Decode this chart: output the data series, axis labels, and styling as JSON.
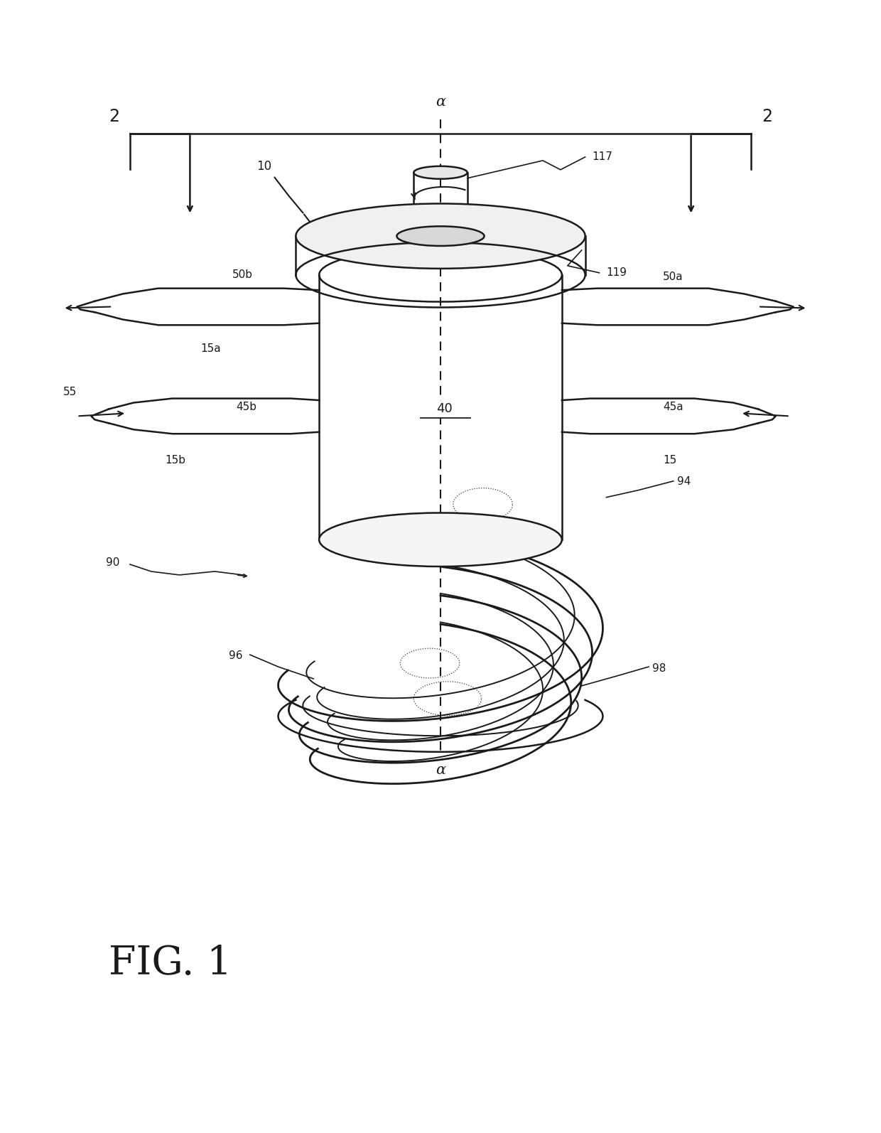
{
  "background_color": "#ffffff",
  "line_color": "#1a1a1a",
  "fig_width": 12.4,
  "fig_height": 15.94,
  "dpi": 100,
  "labels": {
    "2_left": "2",
    "2_right": "2",
    "10": "10",
    "117": "117",
    "119": "119",
    "50b": "50b",
    "50a": "50a",
    "15a": "15a",
    "15b": "15b",
    "15": "15",
    "45a": "45a",
    "45b": "45b",
    "55": "55",
    "40": "40",
    "90": "90",
    "94": "94",
    "96": "96",
    "98": "98",
    "alpha_top": "α",
    "alpha_bottom": "α"
  },
  "fig_label": "FIG. 1"
}
